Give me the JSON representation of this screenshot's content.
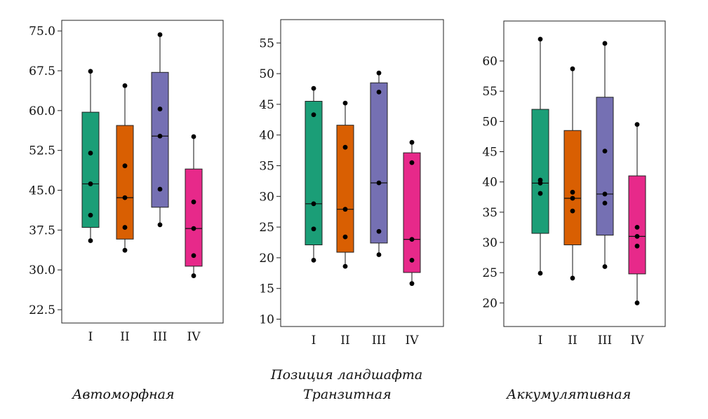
{
  "caption": {
    "title": "Позиция ландшафта",
    "panel_labels": [
      "Автоморфная",
      "Транзитная",
      "Аккумулятивная"
    ]
  },
  "chart_data": [
    {
      "type": "box",
      "title": "Автоморфная",
      "categories": [
        "I",
        "II",
        "III",
        "IV"
      ],
      "ylim": [
        20,
        77
      ],
      "yticks": [
        22.5,
        30.0,
        37.5,
        45.0,
        52.5,
        60.0,
        67.5,
        75.0
      ],
      "ytick_labels": [
        "22.5",
        "30.0",
        "37.5",
        "45.0",
        "52.5",
        "60.0",
        "67.5",
        "75.0"
      ],
      "colors": [
        "#1b9e77",
        "#d95f02",
        "#7570b3",
        "#e7298a"
      ],
      "boxes": [
        {
          "whisker_low": 35.5,
          "q1": 38.0,
          "median": 46.2,
          "q3": 59.7,
          "whisker_high": 67.4,
          "points": [
            35.5,
            40.3,
            46.2,
            52.0,
            67.4
          ]
        },
        {
          "whisker_low": 33.7,
          "q1": 35.8,
          "median": 43.6,
          "q3": 57.2,
          "whisker_high": 64.7,
          "points": [
            33.7,
            38.0,
            43.6,
            49.6,
            64.7
          ]
        },
        {
          "whisker_low": 38.5,
          "q1": 41.8,
          "median": 55.2,
          "q3": 67.2,
          "whisker_high": 74.3,
          "points": [
            38.5,
            45.2,
            55.2,
            60.3,
            74.3
          ]
        },
        {
          "whisker_low": 28.9,
          "q1": 30.7,
          "median": 37.8,
          "q3": 49.0,
          "whisker_high": 55.1,
          "points": [
            28.9,
            32.7,
            37.8,
            42.8,
            55.1
          ]
        }
      ]
    },
    {
      "type": "box",
      "title": "Транзитная",
      "categories": [
        "I",
        "II",
        "III",
        "IV"
      ],
      "ylim": [
        8.8,
        58.8
      ],
      "yticks": [
        10,
        15,
        20,
        25,
        30,
        35,
        40,
        45,
        50,
        55
      ],
      "ytick_labels": [
        "10",
        "15",
        "20",
        "25",
        "30",
        "35",
        "40",
        "45",
        "50",
        "55"
      ],
      "colors": [
        "#1b9e77",
        "#d95f02",
        "#7570b3",
        "#e7298a"
      ],
      "boxes": [
        {
          "whisker_low": 19.6,
          "q1": 22.1,
          "median": 28.8,
          "q3": 45.5,
          "whisker_high": 47.6,
          "points": [
            19.6,
            24.7,
            28.8,
            43.3,
            47.6
          ]
        },
        {
          "whisker_low": 18.6,
          "q1": 20.9,
          "median": 27.9,
          "q3": 41.6,
          "whisker_high": 45.2,
          "points": [
            18.6,
            23.4,
            27.9,
            38.0,
            45.2
          ]
        },
        {
          "whisker_low": 20.5,
          "q1": 22.4,
          "median": 32.2,
          "q3": 48.5,
          "whisker_high": 50.1,
          "points": [
            20.5,
            24.3,
            32.2,
            47.0,
            50.1
          ]
        },
        {
          "whisker_low": 15.8,
          "q1": 17.6,
          "median": 23.0,
          "q3": 37.1,
          "whisker_high": 38.8,
          "points": [
            15.8,
            19.6,
            23.0,
            35.5,
            38.8
          ]
        }
      ]
    },
    {
      "type": "box",
      "title": "Аккумулятивная",
      "categories": [
        "I",
        "II",
        "III",
        "IV"
      ],
      "ylim": [
        16.1,
        66.6
      ],
      "yticks": [
        20,
        25,
        30,
        35,
        40,
        45,
        50,
        55,
        60
      ],
      "ytick_labels": [
        "20",
        "25",
        "30",
        "35",
        "40",
        "45",
        "50",
        "55",
        "60"
      ],
      "colors": [
        "#1b9e77",
        "#d95f02",
        "#7570b3",
        "#e7298a"
      ],
      "boxes": [
        {
          "whisker_low": 24.9,
          "q1": 31.5,
          "median": 39.8,
          "q3": 52.0,
          "whisker_high": 63.6,
          "points": [
            24.9,
            38.1,
            39.8,
            40.3,
            63.6
          ]
        },
        {
          "whisker_low": 24.1,
          "q1": 29.6,
          "median": 37.3,
          "q3": 48.5,
          "whisker_high": 58.7,
          "points": [
            24.1,
            35.2,
            37.3,
            38.3,
            58.7
          ]
        },
        {
          "whisker_low": 26.0,
          "q1": 31.2,
          "median": 38.0,
          "q3": 54.0,
          "whisker_high": 62.9,
          "points": [
            26.0,
            36.5,
            38.0,
            45.1,
            62.9
          ]
        },
        {
          "whisker_low": 20.0,
          "q1": 24.8,
          "median": 31.0,
          "q3": 41.0,
          "whisker_high": 49.5,
          "points": [
            20.0,
            29.4,
            31.0,
            32.5,
            49.5
          ]
        }
      ]
    }
  ]
}
